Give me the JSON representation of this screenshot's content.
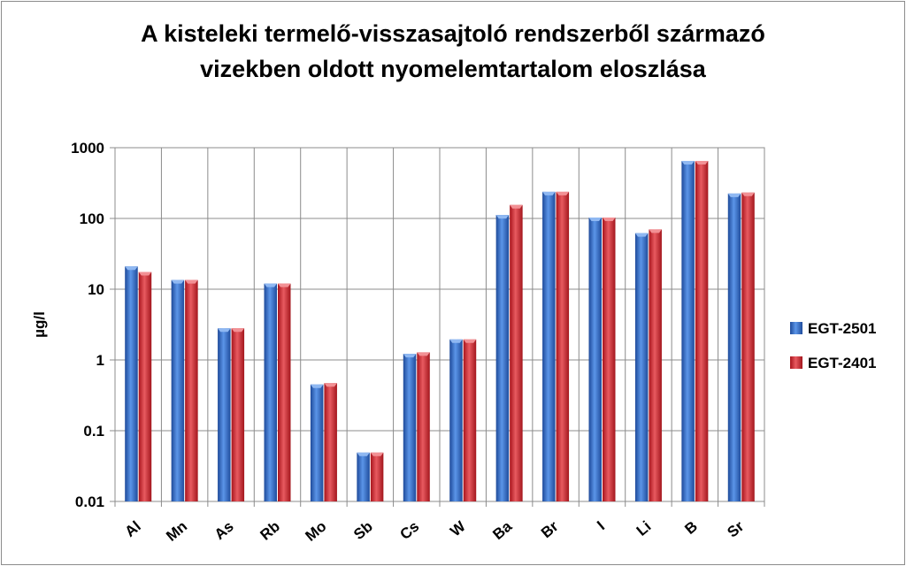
{
  "chart_data": {
    "type": "bar",
    "title_line1": "A kisteleki termelő-visszasajtoló rendszerből származó",
    "title_line2": "vizekben oldott nyomelemtartalom eloszlása",
    "ylabel": "µg/l",
    "xlabel": "",
    "yscale": "log",
    "ylim": [
      0.01,
      1000
    ],
    "yticks": [
      "0.01",
      "0.1",
      "1",
      "10",
      "100",
      "1000"
    ],
    "categories": [
      "Al",
      "Mn",
      "As",
      "Rb",
      "Mo",
      "Sb",
      "Cs",
      "W",
      "Ba",
      "Br",
      "I",
      "Li",
      "B",
      "Sr"
    ],
    "series": [
      {
        "name": "EGT-2501",
        "color": "#3f78d3",
        "values": [
          21,
          13.5,
          2.8,
          12,
          0.45,
          0.049,
          1.22,
          1.95,
          112,
          238,
          103,
          62,
          650,
          225
        ]
      },
      {
        "name": "EGT-2401",
        "color": "#d8373f",
        "values": [
          17.5,
          13.5,
          2.8,
          12,
          0.47,
          0.049,
          1.28,
          1.95,
          155,
          238,
          103,
          70,
          650,
          232
        ]
      }
    ],
    "grid": true,
    "legend": "right"
  }
}
